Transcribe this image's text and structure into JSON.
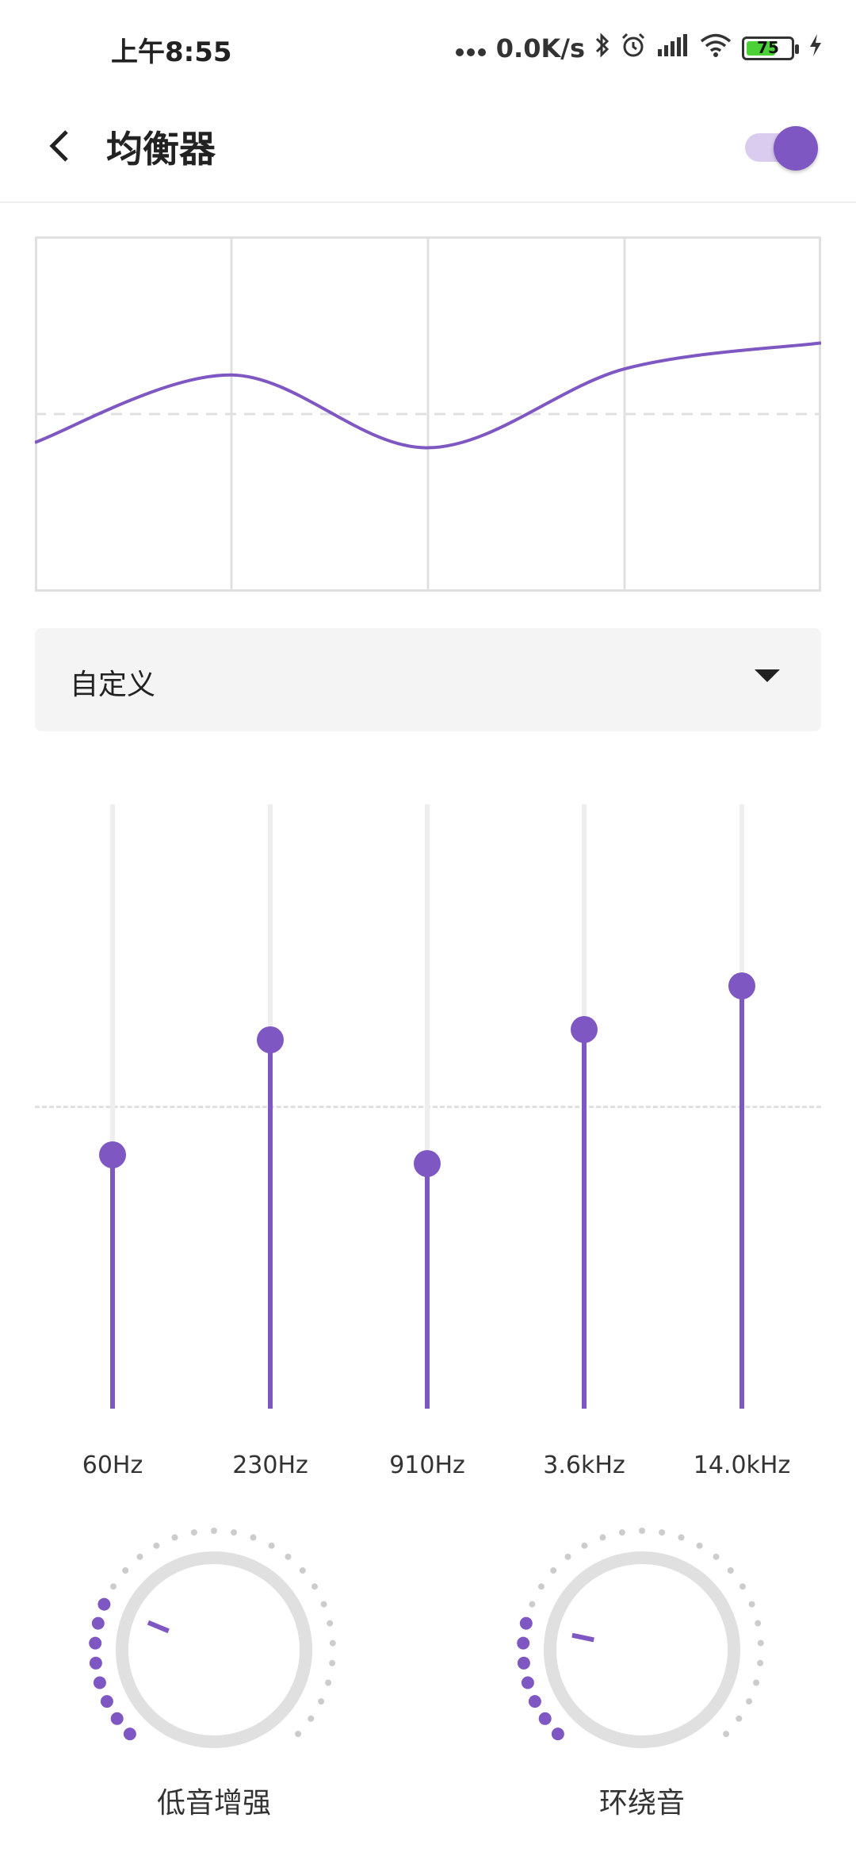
{
  "status_bar": {
    "time": "上午8:55",
    "network_speed": "0.0K/s",
    "battery_level": "75",
    "icons": [
      "more-dots-icon",
      "bluetooth-icon",
      "alarm-icon",
      "signal-icon",
      "wifi-icon",
      "battery-icon",
      "charging-icon"
    ]
  },
  "header": {
    "title": "均衡器",
    "back_icon": "chevron-left-icon",
    "enabled": true
  },
  "preset": {
    "selected": "自定义",
    "caret_icon": "caret-down-icon"
  },
  "equalizer": {
    "accent_color": "#7e57c2",
    "bands": [
      {
        "label": "60Hz",
        "level": 0.42
      },
      {
        "label": "230Hz",
        "level": 0.61
      },
      {
        "label": "910Hz",
        "level": 0.405
      },
      {
        "label": "3.6kHz",
        "level": 0.627
      },
      {
        "label": "14.0kHz",
        "level": 0.7
      }
    ]
  },
  "effects": [
    {
      "label": "低音增强",
      "level": 0.25
    },
    {
      "label": "环绕音",
      "level": 0.21
    }
  ]
}
